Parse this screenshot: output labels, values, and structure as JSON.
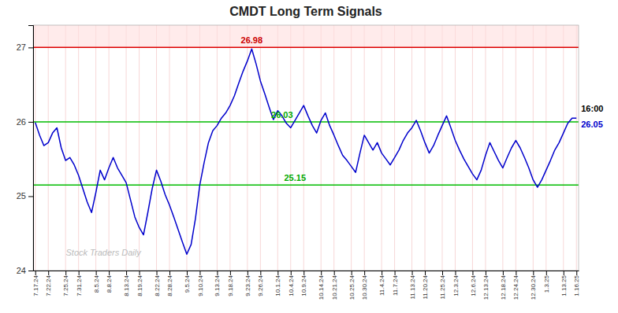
{
  "chart_data": {
    "type": "line",
    "title": "CMDT Long Term Signals",
    "color": "#0000cc",
    "grid": true,
    "ylim": [
      24.0,
      27.3
    ],
    "yticks": [
      24,
      25,
      26,
      27
    ],
    "categories": [
      "7.17.24",
      null,
      null,
      "7.22.24",
      null,
      null,
      null,
      "7.25.24",
      null,
      null,
      "7.31.24",
      null,
      null,
      null,
      "8.5.24",
      null,
      null,
      "8.8.24",
      null,
      null,
      null,
      "8.13.24",
      null,
      null,
      "8.19.24",
      null,
      null,
      null,
      "8.22.24",
      null,
      null,
      "8.28.24",
      null,
      null,
      null,
      "9.5.24",
      null,
      null,
      "9.10.24",
      null,
      null,
      null,
      "9.13.24",
      null,
      null,
      "9.18.24",
      null,
      null,
      null,
      "9.23.24",
      null,
      null,
      "9.26.24",
      null,
      null,
      null,
      "10.1.24",
      null,
      null,
      "10.4.24",
      null,
      null,
      "10.9.24",
      null,
      null,
      null,
      "10.14.24",
      null,
      null,
      "10.21.24",
      null,
      null,
      null,
      "10.25.24",
      null,
      null,
      "10.30.24",
      null,
      null,
      null,
      "11.4.24",
      null,
      null,
      "11.7.24",
      null,
      null,
      null,
      "11.13.24",
      null,
      null,
      "11.20.24",
      null,
      null,
      null,
      "11.25.24",
      null,
      null,
      "12.3.24",
      null,
      null,
      null,
      "12.6.24",
      null,
      null,
      "12.13.24",
      null,
      null,
      null,
      "12.18.24",
      null,
      null,
      "12.24.24",
      null,
      null,
      null,
      "12.30.24",
      null,
      null,
      "1.3.25",
      null,
      null,
      null,
      "1.13.25",
      null,
      null,
      "1.16.25"
    ],
    "values": [
      25.99,
      25.82,
      25.68,
      25.72,
      25.85,
      25.92,
      25.65,
      25.48,
      25.52,
      25.42,
      25.28,
      25.1,
      24.92,
      24.78,
      25.05,
      25.35,
      25.22,
      25.38,
      25.52,
      25.38,
      25.28,
      25.18,
      24.95,
      24.72,
      24.58,
      24.48,
      24.78,
      25.1,
      25.35,
      25.2,
      25.02,
      24.88,
      24.72,
      24.55,
      24.38,
      24.22,
      24.35,
      24.7,
      25.15,
      25.45,
      25.72,
      25.88,
      25.95,
      26.05,
      26.12,
      26.22,
      26.35,
      26.52,
      26.68,
      26.82,
      26.98,
      26.78,
      26.55,
      26.38,
      26.2,
      26.03,
      26.15,
      26.08,
      25.98,
      25.92,
      26.02,
      26.12,
      26.22,
      26.08,
      25.95,
      25.85,
      26.02,
      26.12,
      25.95,
      25.82,
      25.68,
      25.55,
      25.48,
      25.4,
      25.32,
      25.58,
      25.82,
      25.72,
      25.62,
      25.72,
      25.58,
      25.5,
      25.42,
      25.52,
      25.62,
      25.75,
      25.85,
      25.92,
      26.02,
      25.88,
      25.72,
      25.58,
      25.68,
      25.82,
      25.95,
      26.08,
      25.92,
      25.75,
      25.62,
      25.5,
      25.4,
      25.3,
      25.22,
      25.35,
      25.55,
      25.72,
      25.6,
      25.48,
      25.38,
      25.52,
      25.65,
      25.75,
      25.65,
      25.52,
      25.38,
      25.22,
      25.12,
      25.22,
      25.35,
      25.48,
      25.62,
      25.72,
      25.85,
      25.98,
      26.05,
      26.05
    ],
    "reference_lines": [
      {
        "value": 27.0,
        "color": "#dd0000"
      },
      {
        "value": 26.0,
        "color": "#00bb00"
      },
      {
        "value": 25.15,
        "color": "#00bb00"
      }
    ],
    "shaded_band": {
      "ylim": [
        27.0,
        27.3
      ],
      "color": "#ffdddd"
    },
    "annotations": [
      {
        "text": "26.98",
        "color": "#cc0000"
      },
      {
        "text": "26.03",
        "color": "#00aa00"
      },
      {
        "text": "25.15",
        "color": "#00aa00"
      },
      {
        "text": "16:00",
        "color": "#000000"
      },
      {
        "text": "26.05",
        "color": "#0000cc"
      },
      {
        "text": "Stock Traders Daily",
        "color": "#bbbbbb"
      }
    ]
  }
}
